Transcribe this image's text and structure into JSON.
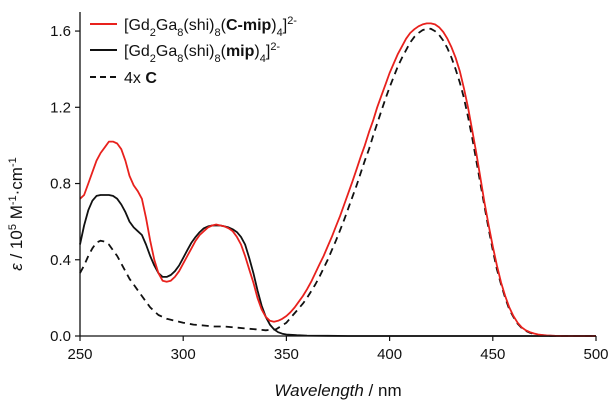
{
  "chart_data": {
    "type": "line",
    "xlabel": "Wavelength / nm",
    "ylabel": "ε / 10^5 M-1·cm-1",
    "xlim": [
      250,
      500
    ],
    "ylim": [
      0,
      1.7
    ],
    "x_ticks": [
      "250",
      "300",
      "350",
      "400",
      "450",
      "500"
    ],
    "y_ticks": [
      "0.0",
      "0.4",
      "0.8",
      "1.2",
      "1.6"
    ],
    "grid": false,
    "legend_position": "top-left",
    "series": [
      {
        "name": "[Gd2Ga8(shi)8(C-mip)4]2-",
        "color": "#e8211d",
        "dash": "solid",
        "x": [
          250,
          252,
          254,
          256,
          258,
          260,
          262,
          264,
          266,
          268,
          270,
          272,
          274,
          276,
          278,
          280,
          282,
          284,
          286,
          288,
          290,
          292,
          294,
          296,
          298,
          300,
          302,
          304,
          306,
          308,
          310,
          312,
          314,
          316,
          318,
          320,
          322,
          324,
          326,
          328,
          330,
          332,
          334,
          336,
          338,
          340,
          342,
          344,
          346,
          348,
          350,
          352,
          354,
          356,
          358,
          360,
          362,
          364,
          366,
          368,
          370,
          372,
          374,
          376,
          378,
          380,
          382,
          384,
          386,
          388,
          390,
          392,
          394,
          396,
          398,
          400,
          402,
          404,
          406,
          408,
          410,
          412,
          414,
          416,
          418,
          420,
          422,
          424,
          426,
          428,
          430,
          432,
          434,
          436,
          438,
          440,
          442,
          444,
          446,
          448,
          450,
          452,
          454,
          456,
          458,
          460,
          462,
          464,
          466,
          468,
          470,
          472,
          474,
          476,
          478,
          480,
          485,
          490,
          495,
          500
        ],
        "y": [
          0.72,
          0.74,
          0.8,
          0.86,
          0.92,
          0.96,
          0.99,
          1.02,
          1.02,
          1.01,
          0.98,
          0.92,
          0.84,
          0.79,
          0.76,
          0.72,
          0.62,
          0.5,
          0.4,
          0.33,
          0.29,
          0.285,
          0.29,
          0.31,
          0.34,
          0.38,
          0.42,
          0.46,
          0.5,
          0.53,
          0.55,
          0.57,
          0.58,
          0.585,
          0.58,
          0.575,
          0.565,
          0.55,
          0.52,
          0.48,
          0.42,
          0.35,
          0.28,
          0.2,
          0.14,
          0.1,
          0.08,
          0.075,
          0.08,
          0.09,
          0.105,
          0.125,
          0.15,
          0.18,
          0.21,
          0.245,
          0.285,
          0.33,
          0.375,
          0.42,
          0.47,
          0.52,
          0.575,
          0.63,
          0.69,
          0.75,
          0.81,
          0.875,
          0.94,
          1.0,
          1.07,
          1.13,
          1.2,
          1.26,
          1.32,
          1.38,
          1.43,
          1.48,
          1.52,
          1.56,
          1.59,
          1.61,
          1.625,
          1.635,
          1.64,
          1.64,
          1.635,
          1.62,
          1.595,
          1.56,
          1.515,
          1.46,
          1.39,
          1.3,
          1.2,
          1.08,
          0.96,
          0.83,
          0.7,
          0.58,
          0.47,
          0.37,
          0.28,
          0.21,
          0.15,
          0.105,
          0.07,
          0.045,
          0.03,
          0.02,
          0.013,
          0.008,
          0.005,
          0.003,
          0.002,
          0.001,
          0.0,
          0.0,
          0.0,
          0.0
        ]
      },
      {
        "name": "[Gd2Ga8(shi)8(mip)4]2-",
        "color": "#111111",
        "dash": "solid",
        "x": [
          250,
          252,
          254,
          256,
          258,
          260,
          262,
          264,
          266,
          268,
          270,
          272,
          274,
          276,
          278,
          280,
          282,
          284,
          286,
          288,
          290,
          292,
          294,
          296,
          298,
          300,
          302,
          304,
          306,
          308,
          310,
          312,
          314,
          316,
          318,
          320,
          322,
          324,
          326,
          328,
          330,
          332,
          334,
          336,
          338,
          340,
          342,
          344,
          346,
          348,
          350,
          355,
          360,
          370,
          380,
          400,
          500
        ],
        "y": [
          0.48,
          0.58,
          0.66,
          0.71,
          0.735,
          0.74,
          0.74,
          0.74,
          0.735,
          0.72,
          0.69,
          0.65,
          0.6,
          0.57,
          0.55,
          0.53,
          0.48,
          0.42,
          0.37,
          0.33,
          0.31,
          0.31,
          0.32,
          0.34,
          0.37,
          0.41,
          0.45,
          0.49,
          0.52,
          0.545,
          0.565,
          0.575,
          0.58,
          0.58,
          0.58,
          0.575,
          0.57,
          0.56,
          0.545,
          0.52,
          0.48,
          0.41,
          0.33,
          0.24,
          0.16,
          0.1,
          0.06,
          0.035,
          0.02,
          0.012,
          0.008,
          0.004,
          0.002,
          0.001,
          0.0,
          0.0,
          0.0
        ]
      },
      {
        "name": "4x C",
        "color": "#111111",
        "dash": "dashed",
        "x": [
          250,
          252,
          254,
          256,
          258,
          260,
          262,
          264,
          266,
          268,
          270,
          272,
          274,
          276,
          278,
          280,
          282,
          284,
          286,
          288,
          290,
          292,
          294,
          296,
          298,
          300,
          305,
          310,
          315,
          320,
          325,
          330,
          335,
          340,
          345,
          350,
          352,
          354,
          356,
          358,
          360,
          362,
          364,
          366,
          368,
          370,
          372,
          374,
          376,
          378,
          380,
          382,
          384,
          386,
          388,
          390,
          392,
          394,
          396,
          398,
          400,
          402,
          404,
          406,
          408,
          410,
          412,
          414,
          416,
          418,
          420,
          422,
          424,
          426,
          428,
          430,
          432,
          434,
          436,
          438,
          440,
          442,
          444,
          446,
          448,
          450,
          452,
          454,
          456,
          458,
          460,
          462,
          464,
          466,
          468,
          470,
          472,
          474,
          476,
          478,
          480,
          485,
          490,
          495,
          500
        ],
        "y": [
          0.33,
          0.37,
          0.42,
          0.46,
          0.49,
          0.5,
          0.495,
          0.48,
          0.45,
          0.42,
          0.38,
          0.34,
          0.3,
          0.27,
          0.24,
          0.21,
          0.18,
          0.15,
          0.13,
          0.11,
          0.1,
          0.09,
          0.085,
          0.08,
          0.075,
          0.07,
          0.06,
          0.055,
          0.05,
          0.05,
          0.045,
          0.04,
          0.035,
          0.03,
          0.035,
          0.07,
          0.095,
          0.12,
          0.145,
          0.17,
          0.2,
          0.235,
          0.27,
          0.31,
          0.355,
          0.4,
          0.45,
          0.5,
          0.555,
          0.61,
          0.67,
          0.73,
          0.79,
          0.855,
          0.92,
          0.98,
          1.05,
          1.115,
          1.18,
          1.245,
          1.305,
          1.36,
          1.415,
          1.46,
          1.5,
          1.54,
          1.57,
          1.59,
          1.605,
          1.612,
          1.612,
          1.6,
          1.58,
          1.55,
          1.51,
          1.46,
          1.4,
          1.33,
          1.25,
          1.15,
          1.04,
          0.92,
          0.8,
          0.68,
          0.56,
          0.45,
          0.35,
          0.27,
          0.2,
          0.14,
          0.1,
          0.065,
          0.042,
          0.027,
          0.017,
          0.01,
          0.006,
          0.004,
          0.002,
          0.001,
          0.0,
          0.0,
          0.0,
          0.0,
          0.0
        ]
      }
    ]
  }
}
